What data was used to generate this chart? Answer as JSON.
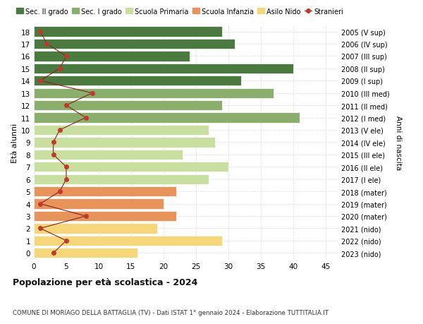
{
  "ages": [
    0,
    1,
    2,
    3,
    4,
    5,
    6,
    7,
    8,
    9,
    10,
    11,
    12,
    13,
    14,
    15,
    16,
    17,
    18
  ],
  "bar_values": [
    16,
    29,
    19,
    22,
    20,
    22,
    27,
    30,
    23,
    28,
    27,
    41,
    29,
    37,
    32,
    40,
    24,
    31,
    29
  ],
  "bar_colors": [
    "#f5d77a",
    "#f5d77a",
    "#f5d77a",
    "#e8935a",
    "#e8935a",
    "#e8935a",
    "#c8dfa0",
    "#c8dfa0",
    "#c8dfa0",
    "#c8dfa0",
    "#c8dfa0",
    "#8aae6b",
    "#8aae6b",
    "#8aae6b",
    "#4a7a40",
    "#4a7a40",
    "#4a7a40",
    "#4a7a40",
    "#4a7a40"
  ],
  "stranieri_values": [
    3,
    5,
    1,
    8,
    1,
    4,
    5,
    5,
    3,
    3,
    4,
    8,
    5,
    9,
    1,
    4,
    5,
    2,
    1
  ],
  "right_labels": [
    "2023 (nido)",
    "2022 (nido)",
    "2021 (nido)",
    "2020 (mater)",
    "2019 (mater)",
    "2018 (mater)",
    "2017 (I ele)",
    "2016 (II ele)",
    "2015 (III ele)",
    "2014 (IV ele)",
    "2013 (V ele)",
    "2012 (I med)",
    "2011 (II med)",
    "2010 (III med)",
    "2009 (I sup)",
    "2008 (II sup)",
    "2007 (III sup)",
    "2006 (IV sup)",
    "2005 (V sup)"
  ],
  "legend_labels": [
    "Sec. II grado",
    "Sec. I grado",
    "Scuola Primaria",
    "Scuola Infanzia",
    "Asilo Nido",
    "Stranieri"
  ],
  "legend_colors": [
    "#4a7a40",
    "#8aae6b",
    "#c8dfa0",
    "#e8935a",
    "#f5d77a",
    "#c0392b"
  ],
  "ylabel_left": "Età alunni",
  "ylabel_right": "Anni di nascita",
  "title": "Popolazione per età scolastica - 2024",
  "subtitle": "COMUNE DI MORIAGO DELLA BATTAGLIA (TV) - Dati ISTAT 1° gennaio 2024 - Elaborazione TUTTITALIA.IT",
  "xlim": [
    0,
    47
  ],
  "xticks": [
    0,
    5,
    10,
    15,
    20,
    25,
    30,
    35,
    40,
    45
  ],
  "bg_color": "#ffffff",
  "grid_color": "#dddddd",
  "stranieri_color": "#c0392b",
  "stranieri_line_color": "#8b2020"
}
